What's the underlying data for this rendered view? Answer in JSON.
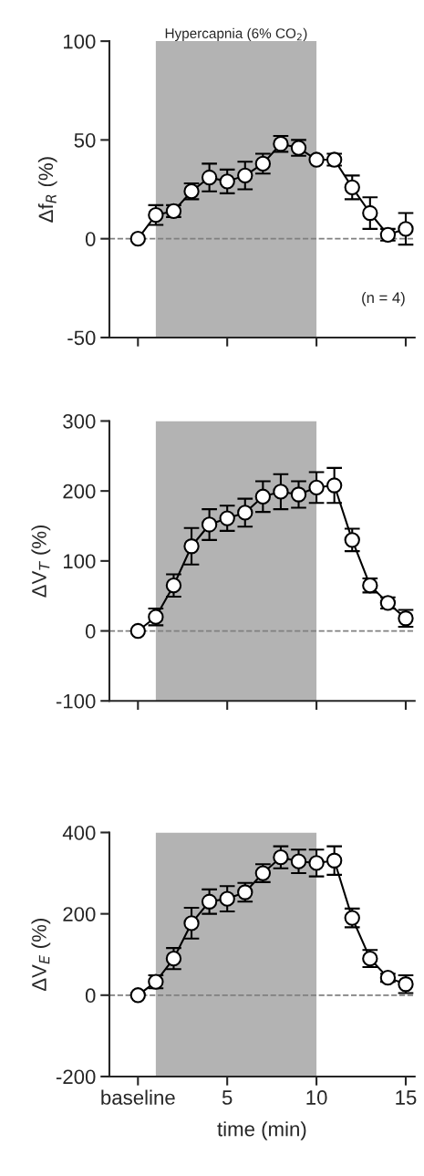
{
  "chart_data": [
    {
      "type": "line",
      "x": [
        0,
        1,
        2,
        3,
        4,
        5,
        6,
        7,
        8,
        9,
        10,
        11,
        12,
        13,
        14,
        15
      ],
      "ylabel": "Δf$_{R}$ (%)",
      "series": [
        {
          "color": "#000000",
          "values": [
            0,
            12,
            14,
            24,
            31,
            29,
            32,
            38,
            48,
            46,
            40,
            40,
            26,
            13,
            2,
            5
          ],
          "errors": [
            null,
            5,
            3,
            4,
            7,
            6,
            7,
            5,
            4,
            4,
            null,
            3,
            6,
            8,
            3,
            8
          ]
        }
      ],
      "xlim": [
        -1.6,
        15.5
      ],
      "xticks": [
        {
          "value": 0,
          "label": null
        },
        {
          "value": 5,
          "label": null
        },
        {
          "value": 10,
          "label": null
        },
        {
          "value": 15,
          "label": null
        }
      ],
      "ylim": [
        -50,
        100
      ],
      "yticks": [
        -50,
        0,
        50,
        100
      ],
      "tick_labels": "y",
      "marker": "circle",
      "line_style": "solid",
      "grid": false,
      "bands": [
        {
          "axis": "x",
          "from": 1,
          "to": 10,
          "label": "Hypercapnia (6% CO$_{2}$)",
          "color": "#b3b3b3"
        }
      ],
      "ref_lines": [
        {
          "axis": "y",
          "value": 0,
          "color": "#808080",
          "line_style": "dashed"
        }
      ],
      "annotations": [
        "(n = 4)"
      ]
    },
    {
      "type": "line",
      "x": [
        0,
        1,
        2,
        3,
        4,
        5,
        6,
        7,
        8,
        9,
        10,
        11,
        12,
        13,
        14,
        15
      ],
      "ylabel": "ΔV$_{T}$ (%)",
      "series": [
        {
          "color": "#000000",
          "values": [
            0,
            20,
            65,
            121,
            152,
            161,
            169,
            192,
            199,
            195,
            205,
            208,
            130,
            65,
            40,
            18
          ],
          "errors": [
            null,
            12,
            16,
            26,
            22,
            18,
            20,
            22,
            25,
            19,
            22,
            25,
            16,
            10,
            8,
            12
          ]
        }
      ],
      "xlim": [
        -1.6,
        15.5
      ],
      "xticks": [
        {
          "value": 0,
          "label": null
        },
        {
          "value": 5,
          "label": null
        },
        {
          "value": 10,
          "label": null
        },
        {
          "value": 15,
          "label": null
        }
      ],
      "ylim": [
        -100,
        300
      ],
      "yticks": [
        -100,
        0,
        100,
        200,
        300
      ],
      "tick_labels": "y",
      "marker": "circle",
      "line_style": "solid",
      "grid": false,
      "bands": [
        {
          "axis": "x",
          "from": 1,
          "to": 10,
          "color": "#b3b3b3"
        }
      ],
      "ref_lines": [
        {
          "axis": "y",
          "value": 0,
          "color": "#808080",
          "line_style": "dashed"
        }
      ]
    },
    {
      "type": "line",
      "x": [
        0,
        1,
        2,
        3,
        4,
        5,
        6,
        7,
        8,
        9,
        10,
        11,
        12,
        13,
        14,
        15
      ],
      "ylabel": "ΔV$_{E}$ (%)",
      "xlabel": "time (min)",
      "series": [
        {
          "color": "#000000",
          "values": [
            0,
            33,
            90,
            177,
            230,
            237,
            253,
            300,
            339,
            329,
            325,
            331,
            190,
            90,
            43,
            27
          ],
          "errors": [
            null,
            16,
            26,
            38,
            30,
            31,
            23,
            22,
            27,
            29,
            33,
            35,
            23,
            21,
            10,
            22
          ]
        }
      ],
      "xlim": [
        -1.6,
        15.5
      ],
      "xticks": [
        {
          "value": 0,
          "label": "baseline"
        },
        5,
        10,
        15
      ],
      "ylim": [
        -200,
        400
      ],
      "yticks": [
        -200,
        0,
        200,
        400
      ],
      "marker": "circle",
      "line_style": "solid",
      "grid": false,
      "bands": [
        {
          "axis": "x",
          "from": 1,
          "to": 10,
          "color": "#b3b3b3"
        }
      ],
      "ref_lines": [
        {
          "axis": "y",
          "value": 0,
          "color": "#808080",
          "line_style": "dashed"
        }
      ]
    }
  ]
}
